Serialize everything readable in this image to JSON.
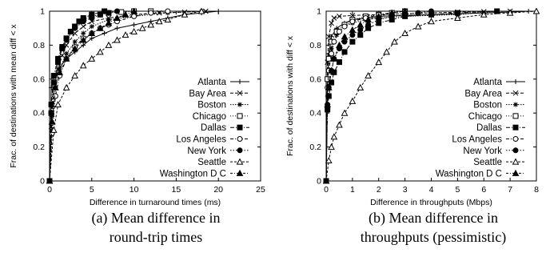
{
  "series_styles": [
    {
      "name": "Atlanta",
      "dash": "",
      "marker": "plus"
    },
    {
      "name": "Bay Area",
      "dash": "4,2",
      "marker": "x"
    },
    {
      "name": "Boston",
      "dash": "1.5,1.5",
      "marker": "star"
    },
    {
      "name": "Chicago",
      "dash": "1,2",
      "marker": "square-open"
    },
    {
      "name": "Dallas",
      "dash": "5,2,1,2",
      "marker": "square-filled"
    },
    {
      "name": "Los Angeles",
      "dash": "4,2,1,2",
      "marker": "circle-open"
    },
    {
      "name": "New York",
      "dash": "1.5,2",
      "marker": "circle-filled"
    },
    {
      "name": "Seattle",
      "dash": "3,2",
      "marker": "triangle-open"
    },
    {
      "name": "Washington D C",
      "dash": "3,2,1,2",
      "marker": "triangle-filled"
    }
  ],
  "chart_data": [
    {
      "type": "line",
      "xlabel": "Difference in turnaround times (ms)",
      "ylabel": "Frac. of destinations with mean diff < x",
      "xlim": [
        0,
        25
      ],
      "ylim": [
        0,
        1
      ],
      "xticks": [
        "0",
        "5",
        "10",
        "15",
        "20",
        "25"
      ],
      "yticks": [
        "0",
        "0.2",
        "0.4",
        "0.6",
        "0.8",
        "1"
      ],
      "caption": [
        "(a) Mean difference in",
        "round-trip times"
      ],
      "series": [
        {
          "name": "Atlanta",
          "x": [
            0,
            0.2,
            0.6,
            1.2,
            2,
            3,
            4,
            5,
            6.5,
            8,
            10,
            12,
            14,
            16,
            18,
            20
          ],
          "y": [
            0,
            0.55,
            0.62,
            0.67,
            0.72,
            0.76,
            0.8,
            0.84,
            0.87,
            0.9,
            0.92,
            0.94,
            0.96,
            0.98,
            0.99,
            1
          ]
        },
        {
          "name": "Bay Area",
          "x": [
            0,
            0.2,
            0.5,
            1,
            1.5,
            2,
            3,
            4,
            5,
            7,
            10,
            13,
            16,
            18.5
          ],
          "y": [
            0,
            0.32,
            0.55,
            0.66,
            0.74,
            0.8,
            0.87,
            0.91,
            0.94,
            0.96,
            0.98,
            0.99,
            0.995,
            1
          ]
        },
        {
          "name": "Boston",
          "x": [
            0,
            0.3,
            0.7,
            1.2,
            2,
            3,
            4,
            5,
            7,
            10,
            14,
            18
          ],
          "y": [
            0,
            0.38,
            0.55,
            0.66,
            0.75,
            0.82,
            0.87,
            0.91,
            0.95,
            0.97,
            0.99,
            1
          ]
        },
        {
          "name": "Chicago",
          "x": [
            0,
            0.2,
            0.5,
            1,
            1.5,
            2,
            2.5,
            3,
            4,
            5,
            6,
            7,
            8.5,
            10,
            12
          ],
          "y": [
            0,
            0.4,
            0.58,
            0.7,
            0.78,
            0.84,
            0.88,
            0.91,
            0.95,
            0.97,
            0.98,
            0.99,
            0.995,
            1,
            1
          ]
        },
        {
          "name": "Dallas",
          "x": [
            0,
            0.2,
            0.5,
            1,
            1.5,
            2,
            2.5,
            3,
            3.5,
            4,
            5,
            6.5
          ],
          "y": [
            0,
            0.45,
            0.62,
            0.72,
            0.79,
            0.84,
            0.88,
            0.91,
            0.94,
            0.96,
            0.98,
            1
          ]
        },
        {
          "name": "Los Angeles",
          "x": [
            0,
            0.3,
            0.7,
            1.2,
            2,
            3,
            4,
            5,
            6,
            7,
            8,
            10,
            12,
            14
          ],
          "y": [
            0,
            0.28,
            0.5,
            0.62,
            0.72,
            0.79,
            0.84,
            0.87,
            0.9,
            0.92,
            0.94,
            0.97,
            0.99,
            1
          ]
        },
        {
          "name": "New York",
          "x": [
            0,
            0.2,
            0.5,
            1,
            1.5,
            2,
            3,
            4,
            5,
            6,
            7,
            8
          ],
          "y": [
            0,
            0.4,
            0.58,
            0.7,
            0.78,
            0.83,
            0.9,
            0.94,
            0.96,
            0.98,
            0.99,
            1
          ]
        },
        {
          "name": "Seattle",
          "x": [
            0,
            0.5,
            1,
            2,
            3,
            4,
            5,
            6,
            7,
            8,
            9,
            10,
            11,
            12,
            13,
            14,
            16,
            18
          ],
          "y": [
            0,
            0.3,
            0.45,
            0.55,
            0.62,
            0.68,
            0.72,
            0.76,
            0.8,
            0.83,
            0.86,
            0.88,
            0.9,
            0.92,
            0.94,
            0.95,
            0.98,
            1
          ]
        },
        {
          "name": "Washington D C",
          "x": [
            0,
            0.3,
            0.7,
            1.2,
            2,
            3,
            4,
            5,
            6,
            7,
            8,
            9,
            10
          ],
          "y": [
            0,
            0.35,
            0.55,
            0.64,
            0.72,
            0.78,
            0.83,
            0.87,
            0.9,
            0.93,
            0.96,
            0.98,
            1
          ]
        }
      ]
    },
    {
      "type": "line",
      "xlabel": "Difference in throughputs (Mbps)",
      "ylabel": "Frac. of destinations with diff < x",
      "xlim": [
        0,
        8
      ],
      "ylim": [
        0,
        1
      ],
      "xticks": [
        "0",
        "1",
        "2",
        "3",
        "4",
        "5",
        "6",
        "7",
        "8"
      ],
      "yticks": [
        "0",
        "0.2",
        "0.4",
        "0.6",
        "0.8",
        "1"
      ],
      "caption": [
        "(b) Mean difference in",
        "throughputs (pessimistic)"
      ],
      "series": [
        {
          "name": "Atlanta",
          "x": [
            0,
            0.05,
            0.1,
            0.2,
            0.4,
            0.7,
            1,
            1.5,
            2,
            3,
            4,
            5,
            6,
            7,
            7.7
          ],
          "y": [
            0,
            0.6,
            0.75,
            0.85,
            0.9,
            0.93,
            0.95,
            0.96,
            0.97,
            0.975,
            0.98,
            0.985,
            0.99,
            0.995,
            1
          ]
        },
        {
          "name": "Bay Area",
          "x": [
            0,
            0.05,
            0.1,
            0.2,
            0.3,
            0.5,
            1,
            2,
            3,
            4,
            5,
            6,
            7
          ],
          "y": [
            0,
            0.7,
            0.85,
            0.93,
            0.96,
            0.97,
            0.975,
            0.98,
            0.985,
            0.99,
            0.995,
            0.997,
            1
          ]
        },
        {
          "name": "Boston",
          "x": [
            0,
            0.05,
            0.1,
            0.2,
            0.4,
            0.7,
            1,
            1.5,
            2,
            3,
            4,
            5,
            6.5
          ],
          "y": [
            0,
            0.5,
            0.65,
            0.78,
            0.86,
            0.91,
            0.93,
            0.95,
            0.96,
            0.97,
            0.975,
            0.98,
            1
          ]
        },
        {
          "name": "Chicago",
          "x": [
            0,
            0.05,
            0.1,
            0.2,
            0.4,
            0.7,
            1,
            1.5,
            2,
            2.5,
            3
          ],
          "y": [
            0,
            0.6,
            0.72,
            0.82,
            0.88,
            0.92,
            0.95,
            0.97,
            0.98,
            0.99,
            1
          ]
        },
        {
          "name": "Dallas",
          "x": [
            0,
            0.05,
            0.1,
            0.2,
            0.3,
            0.5,
            0.7,
            1,
            1.3,
            1.6,
            2,
            2.5,
            3,
            4,
            5,
            6.5
          ],
          "y": [
            0,
            0.42,
            0.5,
            0.58,
            0.64,
            0.7,
            0.76,
            0.82,
            0.86,
            0.9,
            0.93,
            0.95,
            0.97,
            0.98,
            0.99,
            1
          ]
        },
        {
          "name": "Los Angeles",
          "x": [
            0,
            0.05,
            0.1,
            0.2,
            0.3,
            0.5,
            0.7,
            1,
            1.5,
            2,
            3
          ],
          "y": [
            0,
            0.55,
            0.65,
            0.75,
            0.82,
            0.88,
            0.91,
            0.94,
            0.96,
            0.98,
            1
          ]
        },
        {
          "name": "New York",
          "x": [
            0,
            0.05,
            0.1,
            0.2,
            0.3,
            0.5,
            0.7,
            1,
            1.3,
            1.6,
            2,
            2.5,
            3,
            3.5,
            4
          ],
          "y": [
            0,
            0.45,
            0.55,
            0.65,
            0.72,
            0.78,
            0.82,
            0.86,
            0.89,
            0.92,
            0.95,
            0.97,
            0.98,
            0.99,
            1
          ]
        },
        {
          "name": "Seattle",
          "x": [
            0,
            0.1,
            0.2,
            0.3,
            0.5,
            0.7,
            1,
            1.3,
            1.6,
            2,
            2.3,
            2.6,
            3,
            3.5,
            4,
            5,
            6,
            7,
            8
          ],
          "y": [
            0,
            0.12,
            0.2,
            0.26,
            0.33,
            0.4,
            0.47,
            0.55,
            0.62,
            0.7,
            0.76,
            0.82,
            0.87,
            0.91,
            0.94,
            0.96,
            0.98,
            0.99,
            1
          ]
        },
        {
          "name": "Washington D C",
          "x": [
            0,
            0.05,
            0.1,
            0.2,
            0.3,
            0.5,
            0.7,
            1,
            1.3,
            1.6,
            2,
            2.5,
            3
          ],
          "y": [
            0,
            0.45,
            0.55,
            0.65,
            0.72,
            0.8,
            0.85,
            0.89,
            0.92,
            0.95,
            0.97,
            0.99,
            1
          ]
        }
      ]
    }
  ]
}
